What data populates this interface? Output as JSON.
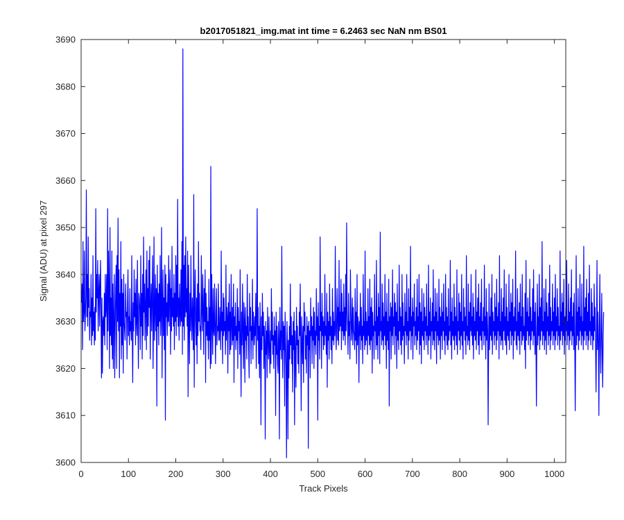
{
  "chart_data": {
    "type": "line",
    "title": "b2017051821_img.mat int time = 6.2463 sec  NaN nm BS01",
    "xlabel": "Track Pixels",
    "ylabel": "Signal (ADU) at pixel 297",
    "xlim": [
      0,
      1024
    ],
    "ylim": [
      3600,
      3690
    ],
    "xticks": [
      0,
      100,
      200,
      300,
      400,
      500,
      600,
      700,
      800,
      900,
      1000
    ],
    "yticks": [
      3600,
      3610,
      3620,
      3630,
      3640,
      3650,
      3660,
      3670,
      3680,
      3690
    ],
    "grid": false,
    "line_color": "#0000ff",
    "axis_color": "#262626",
    "series": [
      {
        "name": "",
        "x_start": 1,
        "x_step": 1,
        "values": [
          3634,
          3638,
          3624,
          3647,
          3630,
          3632,
          3645,
          3628,
          3631,
          3636,
          3658,
          3631,
          3640,
          3629,
          3648,
          3633,
          3637,
          3626,
          3632,
          3631,
          3640,
          3625,
          3635,
          3627,
          3644,
          3628,
          3632,
          3625,
          3633,
          3626,
          3654,
          3632,
          3640,
          3635,
          3643,
          3628,
          3636,
          3640,
          3629,
          3637,
          3643,
          3632,
          3618,
          3635,
          3619,
          3630,
          3631,
          3627,
          3636,
          3625,
          3640,
          3631,
          3633,
          3640,
          3624,
          3654,
          3628,
          3645,
          3637,
          3620,
          3650,
          3627,
          3635,
          3625,
          3645,
          3622,
          3638,
          3620,
          3631,
          3640,
          3618,
          3628,
          3637,
          3642,
          3620,
          3644,
          3630,
          3652,
          3628,
          3641,
          3618,
          3636,
          3629,
          3647,
          3622,
          3639,
          3625,
          3636,
          3619,
          3640,
          3630,
          3628,
          3626,
          3638,
          3631,
          3632,
          3622,
          3634,
          3641,
          3627,
          3631,
          3625,
          3637,
          3628,
          3630,
          3626,
          3644,
          3629,
          3617,
          3634,
          3628,
          3641,
          3631,
          3636,
          3625,
          3639,
          3630,
          3627,
          3643,
          3630,
          3620,
          3636,
          3635,
          3632,
          3624,
          3644,
          3629,
          3636,
          3622,
          3640,
          3627,
          3648,
          3632,
          3638,
          3626,
          3633,
          3641,
          3624,
          3645,
          3627,
          3637,
          3629,
          3643,
          3633,
          3646,
          3622,
          3633,
          3638,
          3628,
          3636,
          3644,
          3620,
          3630,
          3648,
          3626,
          3632,
          3640,
          3628,
          3637,
          3612,
          3642,
          3629,
          3636,
          3625,
          3638,
          3630,
          3644,
          3627,
          3632,
          3650,
          3618,
          3633,
          3641,
          3627,
          3635,
          3624,
          3642,
          3609,
          3640,
          3631,
          3634,
          3627,
          3638,
          3630,
          3644,
          3629,
          3636,
          3641,
          3623,
          3637,
          3628,
          3646,
          3631,
          3635,
          3629,
          3640,
          3624,
          3636,
          3630,
          3644,
          3627,
          3642,
          3631,
          3656,
          3629,
          3635,
          3626,
          3638,
          3632,
          3629,
          3641,
          3630,
          3647,
          3623,
          3688,
          3629,
          3642,
          3626,
          3644,
          3631,
          3648,
          3632,
          3637,
          3629,
          3645,
          3614,
          3642,
          3630,
          3621,
          3636,
          3628,
          3644,
          3631,
          3626,
          3635,
          3630,
          3624,
          3657,
          3616,
          3633,
          3641,
          3630,
          3625,
          3635,
          3621,
          3638,
          3627,
          3647,
          3630,
          3636,
          3628,
          3629,
          3624,
          3644,
          3632,
          3628,
          3640,
          3633,
          3623,
          3637,
          3630,
          3641,
          3617,
          3636,
          3627,
          3633,
          3626,
          3630,
          3622,
          3639,
          3626,
          3633,
          3620,
          3663,
          3621,
          3640,
          3630,
          3623,
          3637,
          3628,
          3627,
          3638,
          3629,
          3621,
          3632,
          3637,
          3625,
          3629,
          3628,
          3638,
          3626,
          3626,
          3633,
          3629,
          3624,
          3645,
          3628,
          3632,
          3621,
          3636,
          3627,
          3635,
          3628,
          3630,
          3623,
          3642,
          3626,
          3633,
          3631,
          3619,
          3634,
          3628,
          3638,
          3623,
          3632,
          3624,
          3640,
          3629,
          3625,
          3633,
          3626,
          3638,
          3617,
          3631,
          3627,
          3634,
          3624,
          3629,
          3626,
          3637,
          3620,
          3633,
          3628,
          3630,
          3623,
          3641,
          3626,
          3614,
          3632,
          3625,
          3638,
          3628,
          3620,
          3634,
          3630,
          3617,
          3633,
          3626,
          3629,
          3622,
          3640,
          3627,
          3631,
          3624,
          3618,
          3636,
          3628,
          3633,
          3621,
          3629,
          3626,
          3639,
          3622,
          3632,
          3628,
          3625,
          3631,
          3627,
          3636,
          3620,
          3630,
          3654,
          3626,
          3633,
          3621,
          3629,
          3618,
          3634,
          3626,
          3608,
          3631,
          3624,
          3636,
          3627,
          3632,
          3620,
          3629,
          3625,
          3605,
          3630,
          3623,
          3628,
          3618,
          3633,
          3626,
          3622,
          3631,
          3624,
          3619,
          3628,
          3621,
          3637,
          3626,
          3632,
          3623,
          3627,
          3620,
          3631,
          3625,
          3628,
          3610,
          3632,
          3623,
          3629,
          3621,
          3619,
          3630,
          3626,
          3605,
          3633,
          3624,
          3628,
          3622,
          3646,
          3627,
          3618,
          3630,
          3624,
          3629,
          3612,
          3632,
          3626,
          3620,
          3601,
          3630,
          3625,
          3605,
          3626,
          3618,
          3629,
          3622,
          3638,
          3625,
          3631,
          3621,
          3627,
          3615,
          3630,
          3624,
          3632,
          3608,
          3628,
          3623,
          3616,
          3633,
          3625,
          3629,
          3621,
          3626,
          3619,
          3632,
          3627,
          3638,
          3624,
          3611,
          3631,
          3626,
          3621,
          3629,
          3617,
          3634,
          3628,
          3632,
          3622,
          3627,
          3619,
          3631,
          3625,
          3629,
          3603,
          3630,
          3624,
          3628,
          3618,
          3635,
          3627,
          3631,
          3621,
          3629,
          3626,
          3633,
          3620,
          3632,
          3625,
          3628,
          3623,
          3637,
          3627,
          3631,
          3609,
          3634,
          3626,
          3629,
          3622,
          3648,
          3628,
          3632,
          3620,
          3636,
          3627,
          3631,
          3624,
          3630,
          3625,
          3640,
          3627,
          3629,
          3623,
          3636,
          3616,
          3632,
          3626,
          3630,
          3622,
          3638,
          3627,
          3631,
          3624,
          3629,
          3621,
          3637,
          3626,
          3632,
          3625,
          3630,
          3627,
          3646,
          3628,
          3624,
          3631,
          3637,
          3626,
          3633,
          3625,
          3643,
          3628,
          3632,
          3629,
          3639,
          3624,
          3636,
          3628,
          3632,
          3626,
          3638,
          3627,
          3633,
          3625,
          3640,
          3628,
          3651,
          3632,
          3629,
          3623,
          3636,
          3627,
          3630,
          3622,
          3641,
          3633,
          3626,
          3629,
          3635,
          3625,
          3633,
          3628,
          3627,
          3624,
          3637,
          3626,
          3632,
          3621,
          3640,
          3625,
          3631,
          3629,
          3617,
          3630,
          3627,
          3636,
          3624,
          3633,
          3626,
          3629,
          3621,
          3640,
          3627,
          3630,
          3624,
          3645,
          3625,
          3632,
          3626,
          3630,
          3623,
          3637,
          3627,
          3631,
          3625,
          3639,
          3624,
          3633,
          3626,
          3635,
          3619,
          3632,
          3627,
          3629,
          3622,
          3640,
          3628,
          3630,
          3624,
          3643,
          3625,
          3631,
          3622,
          3636,
          3627,
          3633,
          3621,
          3649,
          3628,
          3630,
          3625,
          3638,
          3626,
          3634,
          3624,
          3631,
          3627,
          3640,
          3625,
          3632,
          3620,
          3636,
          3626,
          3630,
          3624,
          3639,
          3612,
          3631,
          3628,
          3634,
          3622,
          3633,
          3627,
          3641,
          3625,
          3631,
          3629,
          3636,
          3623,
          3634,
          3627,
          3632,
          3620,
          3638,
          3626,
          3630,
          3624,
          3642,
          3628,
          3633,
          3625,
          3631,
          3623,
          3640,
          3626,
          3634,
          3627,
          3629,
          3621,
          3636,
          3628,
          3632,
          3625,
          3640,
          3627,
          3630,
          3622,
          3637,
          3626,
          3633,
          3628,
          3646,
          3624,
          3631,
          3627,
          3635,
          3622,
          3632,
          3629,
          3638,
          3625,
          3630,
          3627,
          3633,
          3624,
          3639,
          3626,
          3631,
          3628,
          3640,
          3623,
          3634,
          3625,
          3632,
          3621,
          3637,
          3627,
          3630,
          3626,
          3636,
          3624,
          3633,
          3628,
          3631,
          3625,
          3638,
          3627,
          3629,
          3623,
          3642,
          3626,
          3632,
          3627,
          3635,
          3622,
          3630,
          3628,
          3634,
          3625,
          3641,
          3626,
          3631,
          3624,
          3637,
          3628,
          3632,
          3621,
          3636,
          3627,
          3630,
          3625,
          3639,
          3626,
          3633,
          3622,
          3631,
          3627,
          3636,
          3624,
          3632,
          3628,
          3638,
          3626,
          3630,
          3623,
          3640,
          3627,
          3633,
          3625,
          3631,
          3624,
          3637,
          3626,
          3629,
          3628,
          3643,
          3625,
          3632,
          3622,
          3635,
          3627,
          3630,
          3626,
          3638,
          3624,
          3633,
          3627,
          3631,
          3625,
          3641,
          3623,
          3630,
          3628,
          3636,
          3626,
          3634,
          3624,
          3632,
          3627,
          3640,
          3625,
          3630,
          3622,
          3637,
          3628,
          3633,
          3626,
          3631,
          3623,
          3644,
          3627,
          3629,
          3625,
          3638,
          3626,
          3632,
          3624,
          3634,
          3628,
          3640,
          3627,
          3631,
          3625,
          3636,
          3622,
          3633,
          3627,
          3630,
          3626,
          3641,
          3624,
          3632,
          3628,
          3635,
          3625,
          3638,
          3623,
          3631,
          3627,
          3634,
          3626,
          3639,
          3624,
          3630,
          3628,
          3633,
          3625,
          3642,
          3627,
          3631,
          3622,
          3637,
          3626,
          3632,
          3628,
          3608,
          3625,
          3638,
          3624,
          3631,
          3627,
          3635,
          3626,
          3640,
          3623,
          3632,
          3628,
          3630,
          3625,
          3636,
          3627,
          3633,
          3624,
          3639,
          3626,
          3631,
          3628,
          3634,
          3622,
          3644,
          3627,
          3630,
          3625,
          3637,
          3626,
          3632,
          3624,
          3635,
          3628,
          3641,
          3626,
          3631,
          3625,
          3638,
          3623,
          3633,
          3627,
          3630,
          3626,
          3640,
          3624,
          3632,
          3628,
          3636,
          3625,
          3634,
          3627,
          3639,
          3622,
          3631,
          3626,
          3633,
          3628,
          3645,
          3625,
          3630,
          3624,
          3637,
          3627,
          3632,
          3626,
          3634,
          3623,
          3638,
          3628,
          3631,
          3625,
          3640,
          3626,
          3633,
          3627,
          3629,
          3624,
          3636,
          3620,
          3643,
          3626,
          3632,
          3628,
          3635,
          3625,
          3631,
          3627,
          3639,
          3624,
          3633,
          3626,
          3630,
          3628,
          3637,
          3625,
          3641,
          3627,
          3632,
          3623,
          3634,
          3626,
          3612,
          3628,
          3638,
          3625,
          3631,
          3627,
          3640,
          3624,
          3633,
          3626,
          3635,
          3628,
          3647,
          3625,
          3630,
          3627,
          3637,
          3624,
          3632,
          3626,
          3639,
          3623,
          3634,
          3628,
          3631,
          3625,
          3636,
          3627,
          3642,
          3624,
          3633,
          3626,
          3630,
          3628,
          3638,
          3625,
          3632,
          3627,
          3635,
          3624,
          3640,
          3626,
          3631,
          3628,
          3637,
          3625,
          3633,
          3627,
          3629,
          3624,
          3645,
          3626,
          3632,
          3628,
          3636,
          3625,
          3634,
          3627,
          3639,
          3623,
          3631,
          3626,
          3633,
          3628,
          3643,
          3625,
          3630,
          3627,
          3638,
          3624,
          3632,
          3626,
          3635,
          3628,
          3641,
          3625,
          3631,
          3627,
          3634,
          3624,
          3636,
          3626,
          3611,
          3628,
          3644,
          3625,
          3632,
          3627,
          3637,
          3624,
          3633,
          3626,
          3640,
          3628,
          3631,
          3625,
          3638,
          3627,
          3630,
          3624,
          3646,
          3626,
          3633,
          3628,
          3635,
          3625,
          3639,
          3627,
          3632,
          3624,
          3636,
          3626,
          3642,
          3628,
          3630,
          3625,
          3637,
          3627,
          3634,
          3624,
          3631,
          3626,
          3638,
          3628,
          3633,
          3625,
          3615,
          3627,
          3643,
          3624,
          3632,
          3626,
          3610,
          3628,
          3640,
          3625,
          3619,
          3627,
          3636,
          3624,
          3616,
          3626,
          3632
        ]
      }
    ]
  }
}
